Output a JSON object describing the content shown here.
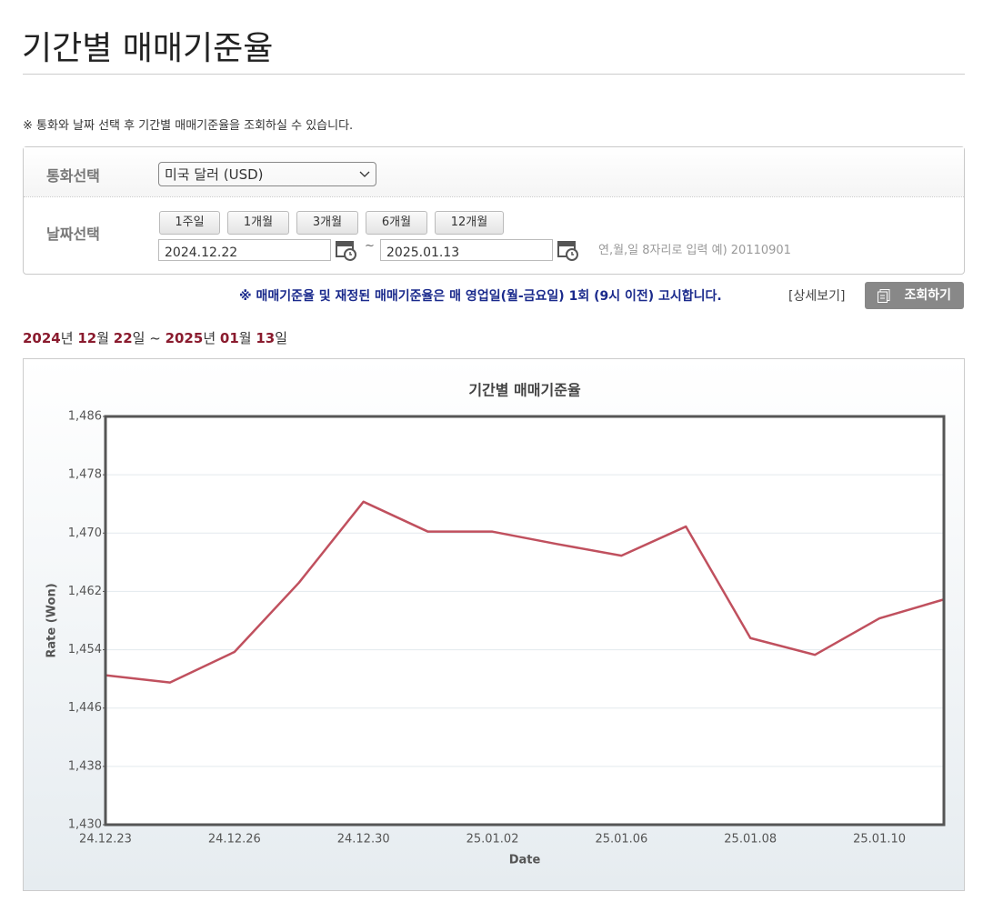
{
  "header": {
    "title": "기간별 매매기준율"
  },
  "notice": "※ 통화와 날짜 선택 후 기간별 매매기준율을 조회하실 수 있습니다.",
  "form": {
    "currency_label": "통화선택",
    "currency_value": "미국 달러 (USD)",
    "date_label": "날짜선택",
    "period_buttons": [
      "1주일",
      "1개월",
      "3개월",
      "6개월",
      "12개월"
    ],
    "start_date": "2024.12.22",
    "separator": "~",
    "end_date": "2025.01.13",
    "date_hint": "연,월,일 8자리로 입력 예) 20110901"
  },
  "info": {
    "message": "※ 매매기준율 및 재정된 매매기준율은 매 영업일(월-금요일) 1회 (9시 이전) 고시합니다.",
    "detail_link": "[상세보기]",
    "search_button": "조회하기"
  },
  "range_parts": [
    "2024",
    "년 ",
    "12",
    "월 ",
    "22",
    "일 ~ ",
    "2025",
    "년 ",
    "01",
    "월 ",
    "13",
    "일"
  ],
  "chart_data": {
    "type": "line",
    "title": "기간별 매매기준율",
    "x_label": "Date",
    "y_label": "Rate (Won)",
    "categories": [
      "24.12.23",
      null,
      "24.12.26",
      null,
      "24.12.30",
      null,
      "25.01.02",
      null,
      "25.01.06",
      null,
      "25.01.08",
      null,
      "25.01.10",
      null
    ],
    "values": [
      1450.5,
      1449.5,
      1453.7,
      1463.2,
      1474.3,
      1470.2,
      1470.2,
      1468.5,
      1466.9,
      1470.9,
      1455.6,
      1453.3,
      1458.3,
      1460.9
    ],
    "color": "#c0505e",
    "ylim": [
      1430,
      1486
    ],
    "yticks": [
      {
        "value": 1430,
        "label": "1,430"
      },
      {
        "value": 1438,
        "label": "1,438"
      },
      {
        "value": 1446,
        "label": "1,446"
      },
      {
        "value": 1454,
        "label": "1,454"
      },
      {
        "value": 1462,
        "label": "1,462"
      },
      {
        "value": 1470,
        "label": "1,470"
      },
      {
        "value": 1478,
        "label": "1,478"
      },
      {
        "value": 1486,
        "label": "1,486"
      }
    ],
    "grid": true
  }
}
